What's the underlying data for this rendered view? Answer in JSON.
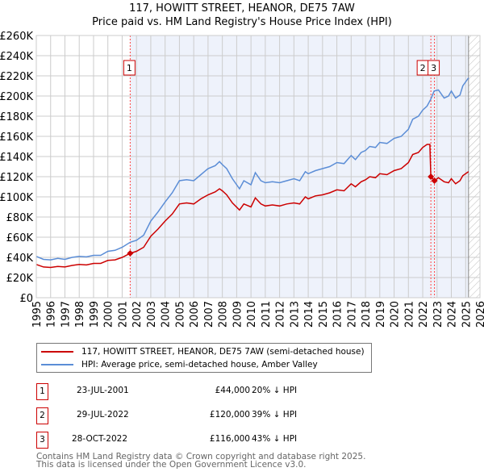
{
  "title": "117, HOWITT STREET, HEANOR, DE75 7AW",
  "subtitle": "Price paid vs. HM Land Registry's House Price Index (HPI)",
  "colors": {
    "property": "#cc0000",
    "hpi": "#5b8dd6",
    "shade": "#eef2fb"
  },
  "chart_data": {
    "type": "line",
    "xlim": [
      1995,
      2026
    ],
    "ylim": [
      0,
      260000
    ],
    "x_ticks": [
      "1995",
      "1996",
      "1997",
      "1998",
      "1999",
      "2000",
      "2001",
      "2002",
      "2003",
      "2004",
      "2005",
      "2006",
      "2007",
      "2008",
      "2009",
      "2010",
      "2011",
      "2012",
      "2013",
      "2014",
      "2015",
      "2016",
      "2017",
      "2018",
      "2019",
      "2020",
      "2021",
      "2022",
      "2023",
      "2024",
      "2025",
      "2026"
    ],
    "y_ticks": [
      "£0",
      "£20K",
      "£40K",
      "£60K",
      "£80K",
      "£100K",
      "£120K",
      "£140K",
      "£160K",
      "£180K",
      "£200K",
      "£220K",
      "£240K",
      "£260K"
    ],
    "forecast_start": 2025.2,
    "series": [
      {
        "name": "HPI: Average price, semi-detached house, Amber Valley",
        "x": [
          1995,
          1995.5,
          1996,
          1996.5,
          1997,
          1997.5,
          1998,
          1998.5,
          1999,
          1999.5,
          2000,
          2000.5,
          2001,
          2001.56,
          2002,
          2002.5,
          2003,
          2003.5,
          2004,
          2004.5,
          2005,
          2005.5,
          2006,
          2006.5,
          2007,
          2007.5,
          2007.8,
          2008,
          2008.3,
          2008.7,
          2009.2,
          2009.5,
          2010,
          2010.3,
          2010.7,
          2011,
          2011.5,
          2012,
          2012.5,
          2013,
          2013.4,
          2013.8,
          2014,
          2014.5,
          2015,
          2015.5,
          2016,
          2016.5,
          2017,
          2017.3,
          2017.7,
          2018,
          2018.3,
          2018.7,
          2019,
          2019.5,
          2020,
          2020.5,
          2021,
          2021.3,
          2021.7,
          2022,
          2022.3,
          2022.57,
          2022.8,
          2023.1,
          2023.5,
          2023.8,
          2024,
          2024.3,
          2024.6,
          2024.8,
          2025.2
        ],
        "y": [
          41000,
          38000,
          37500,
          39000,
          38000,
          40000,
          41000,
          40500,
          42000,
          42000,
          46000,
          47000,
          50000,
          55000,
          57000,
          62000,
          76000,
          85000,
          95000,
          104000,
          116000,
          117000,
          116000,
          122000,
          128000,
          131000,
          135000,
          132000,
          128000,
          118000,
          108000,
          116000,
          112000,
          124000,
          116000,
          114000,
          115000,
          114000,
          116000,
          118000,
          116000,
          125000,
          123000,
          126000,
          128000,
          130000,
          134000,
          133000,
          141000,
          137000,
          144000,
          146000,
          150000,
          149000,
          154000,
          153000,
          158000,
          160000,
          167000,
          177000,
          180000,
          186000,
          190000,
          197000,
          205000,
          206000,
          198000,
          200000,
          205000,
          198000,
          201000,
          210000,
          218000
        ]
      },
      {
        "name": "117, HOWITT STREET, HEANOR, DE75 7AW (semi-detached house)",
        "x": [
          1995,
          1995.5,
          1996,
          1996.5,
          1997,
          1997.5,
          1998,
          1998.5,
          1999,
          1999.5,
          2000,
          2000.5,
          2001,
          2001.56,
          2002,
          2002.5,
          2003,
          2003.5,
          2004,
          2004.5,
          2005,
          2005.5,
          2006,
          2006.5,
          2007,
          2007.5,
          2007.8,
          2008,
          2008.3,
          2008.7,
          2009.2,
          2009.5,
          2010,
          2010.3,
          2010.7,
          2011,
          2011.5,
          2012,
          2012.5,
          2013,
          2013.4,
          2013.8,
          2014,
          2014.5,
          2015,
          2015.5,
          2016,
          2016.5,
          2017,
          2017.3,
          2017.7,
          2018,
          2018.3,
          2018.7,
          2019,
          2019.5,
          2020,
          2020.5,
          2021,
          2021.3,
          2021.7,
          2022,
          2022.3,
          2022.5,
          2022.57,
          2022.82,
          2023.1,
          2023.5,
          2023.8,
          2024,
          2024.3,
          2024.6,
          2024.8,
          2025.2
        ],
        "y": [
          33000,
          30500,
          30000,
          31000,
          30500,
          32000,
          33000,
          32500,
          34000,
          34000,
          37000,
          37500,
          40000,
          44000,
          46000,
          50000,
          61000,
          68000,
          76000,
          83000,
          93000,
          94000,
          93000,
          98000,
          102000,
          105000,
          108000,
          106000,
          102000,
          94000,
          87000,
          93000,
          90000,
          99000,
          93000,
          91000,
          92000,
          91000,
          93000,
          94000,
          93000,
          100000,
          98000,
          101000,
          102000,
          104000,
          107000,
          106000,
          113000,
          110000,
          115000,
          117000,
          120000,
          119000,
          123000,
          122000,
          126000,
          128000,
          134000,
          142000,
          144000,
          149000,
          152000,
          152000,
          120000,
          116000,
          119000,
          115000,
          114000,
          118000,
          113000,
          116000,
          121000,
          125000
        ]
      }
    ],
    "sales": [
      {
        "label": "1",
        "x": 2001.56,
        "price": 44000
      },
      {
        "label": "2",
        "x": 2022.57,
        "price": 120000
      },
      {
        "label": "3",
        "x": 2022.82,
        "price": 116000
      }
    ]
  },
  "legend": {
    "property": "117, HOWITT STREET, HEANOR, DE75 7AW (semi-detached house)",
    "hpi": "HPI: Average price, semi-detached house, Amber Valley"
  },
  "table": [
    {
      "num": "1",
      "date": "23-JUL-2001",
      "price": "£44,000",
      "diff": "20% ↓ HPI"
    },
    {
      "num": "2",
      "date": "29-JUL-2022",
      "price": "£120,000",
      "diff": "39% ↓ HPI"
    },
    {
      "num": "3",
      "date": "28-OCT-2022",
      "price": "£116,000",
      "diff": "43% ↓ HPI"
    }
  ],
  "footer": [
    "Contains HM Land Registry data © Crown copyright and database right 2025.",
    "This data is licensed under the Open Government Licence v3.0."
  ]
}
